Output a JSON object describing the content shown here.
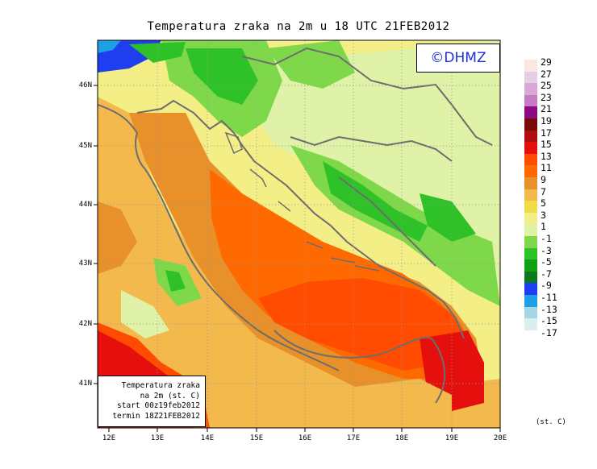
{
  "title": "Temperatura zraka na 2m u 18 UTC 21FEB2012",
  "logo_text": "©DHMZ",
  "info_box": {
    "line1": "Temperatura zraka",
    "line2": "na 2m (st. C)",
    "line3": "start 00z19feb2012",
    "line4": "termin 18Z21FEB2012"
  },
  "units": "(st. C)",
  "latitude_labels": [
    "46N",
    "45N",
    "44N",
    "43N",
    "42N",
    "41N"
  ],
  "longitude_labels": [
    "12E",
    "13E",
    "14E",
    "15E",
    "16E",
    "17E",
    "18E",
    "19E",
    "20E"
  ],
  "legend": {
    "labels": [
      "29",
      "27",
      "25",
      "23",
      "21",
      "19",
      "17",
      "15",
      "13",
      "11",
      "9",
      "7",
      "5",
      "3",
      "1",
      "-1",
      "-3",
      "-5",
      "-7",
      "-9",
      "-11",
      "-13",
      "-15",
      "-17"
    ],
    "colors": [
      "#fbe7e0",
      "#e4cfe4",
      "#d9a8d6",
      "#c77bc4",
      "#8a0b84",
      "#7a0a0a",
      "#b00d0d",
      "#e5100e",
      "#ff4c00",
      "#ff6a00",
      "#e8902a",
      "#f3b94c",
      "#f0dc4a",
      "#f4ee86",
      "#e0f2a8",
      "#7fd84a",
      "#2ec228",
      "#11a014",
      "#0b7a1a",
      "#1f3ef0",
      "#1ba0e4",
      "#a6d6e6",
      "#d8efef",
      "#ffffff"
    ]
  }
}
